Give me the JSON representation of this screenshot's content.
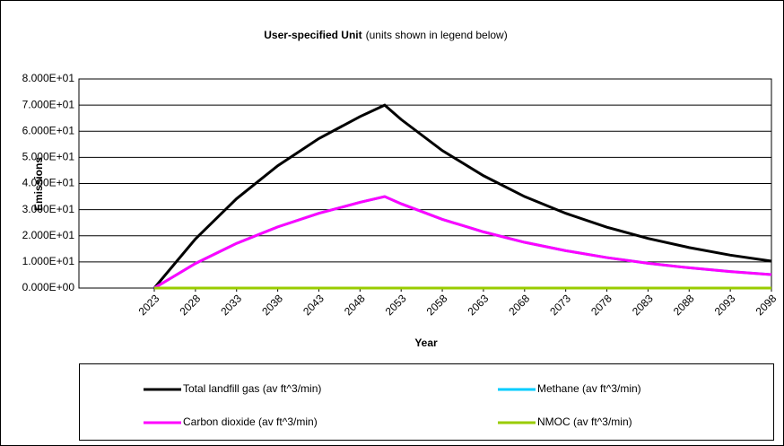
{
  "chart_data": {
    "type": "line",
    "title": "User-specified Unit",
    "subtitle": "(units shown in legend below)",
    "x_label": "Year",
    "y_label": "Emissions",
    "x": [
      2023,
      2028,
      2033,
      2038,
      2043,
      2048,
      2051,
      2053,
      2058,
      2063,
      2068,
      2073,
      2078,
      2083,
      2088,
      2093,
      2098
    ],
    "series": [
      {
        "name": "Total landfill gas (av ft^3/min)",
        "color": "#000000",
        "values": [
          0,
          18.8,
          34.2,
          46.8,
          57.2,
          65.6,
          70,
          64.5,
          52.6,
          43,
          35,
          28.6,
          23.3,
          19,
          15.5,
          12.6,
          10.3
        ]
      },
      {
        "name": "Methane (av ft^3/min)",
        "color": "#00ccff",
        "values": [
          0,
          9.4,
          17.1,
          23.4,
          28.6,
          32.8,
          35,
          32.25,
          26.3,
          21.5,
          17.5,
          14.3,
          11.65,
          9.5,
          7.75,
          6.3,
          5.15
        ]
      },
      {
        "name": "Carbon dioxide (av ft^3/min)",
        "color": "#ff00ff",
        "values": [
          0,
          9.4,
          17.1,
          23.4,
          28.6,
          32.8,
          35,
          32.25,
          26.3,
          21.5,
          17.5,
          14.3,
          11.65,
          9.5,
          7.75,
          6.3,
          5.15
        ]
      },
      {
        "name": "NMOC (av ft^3/min)",
        "color": "#99cc00",
        "values": [
          0,
          0,
          0,
          0,
          0,
          0,
          0,
          0,
          0,
          0,
          0,
          0,
          0,
          0,
          0,
          0,
          0
        ]
      }
    ],
    "xlim": [
      2023,
      2098
    ],
    "xticks": [
      2023,
      2028,
      2033,
      2038,
      2043,
      2048,
      2053,
      2058,
      2063,
      2068,
      2073,
      2078,
      2083,
      2088,
      2093,
      2098
    ],
    "ylim": [
      0,
      80
    ],
    "yticks": [
      {
        "value": 0,
        "label": "0.000E+00"
      },
      {
        "value": 10,
        "label": "1.000E+01"
      },
      {
        "value": 20,
        "label": "2.000E+01"
      },
      {
        "value": 30,
        "label": "3.000E+01"
      },
      {
        "value": 40,
        "label": "4.000E+01"
      },
      {
        "value": 50,
        "label": "5.000E+01"
      },
      {
        "value": 60,
        "label": "6.000E+01"
      },
      {
        "value": 70,
        "label": "7.000E+01"
      },
      {
        "value": 80,
        "label": "8.000E+01"
      }
    ],
    "grid": true,
    "legend": "bottom"
  }
}
